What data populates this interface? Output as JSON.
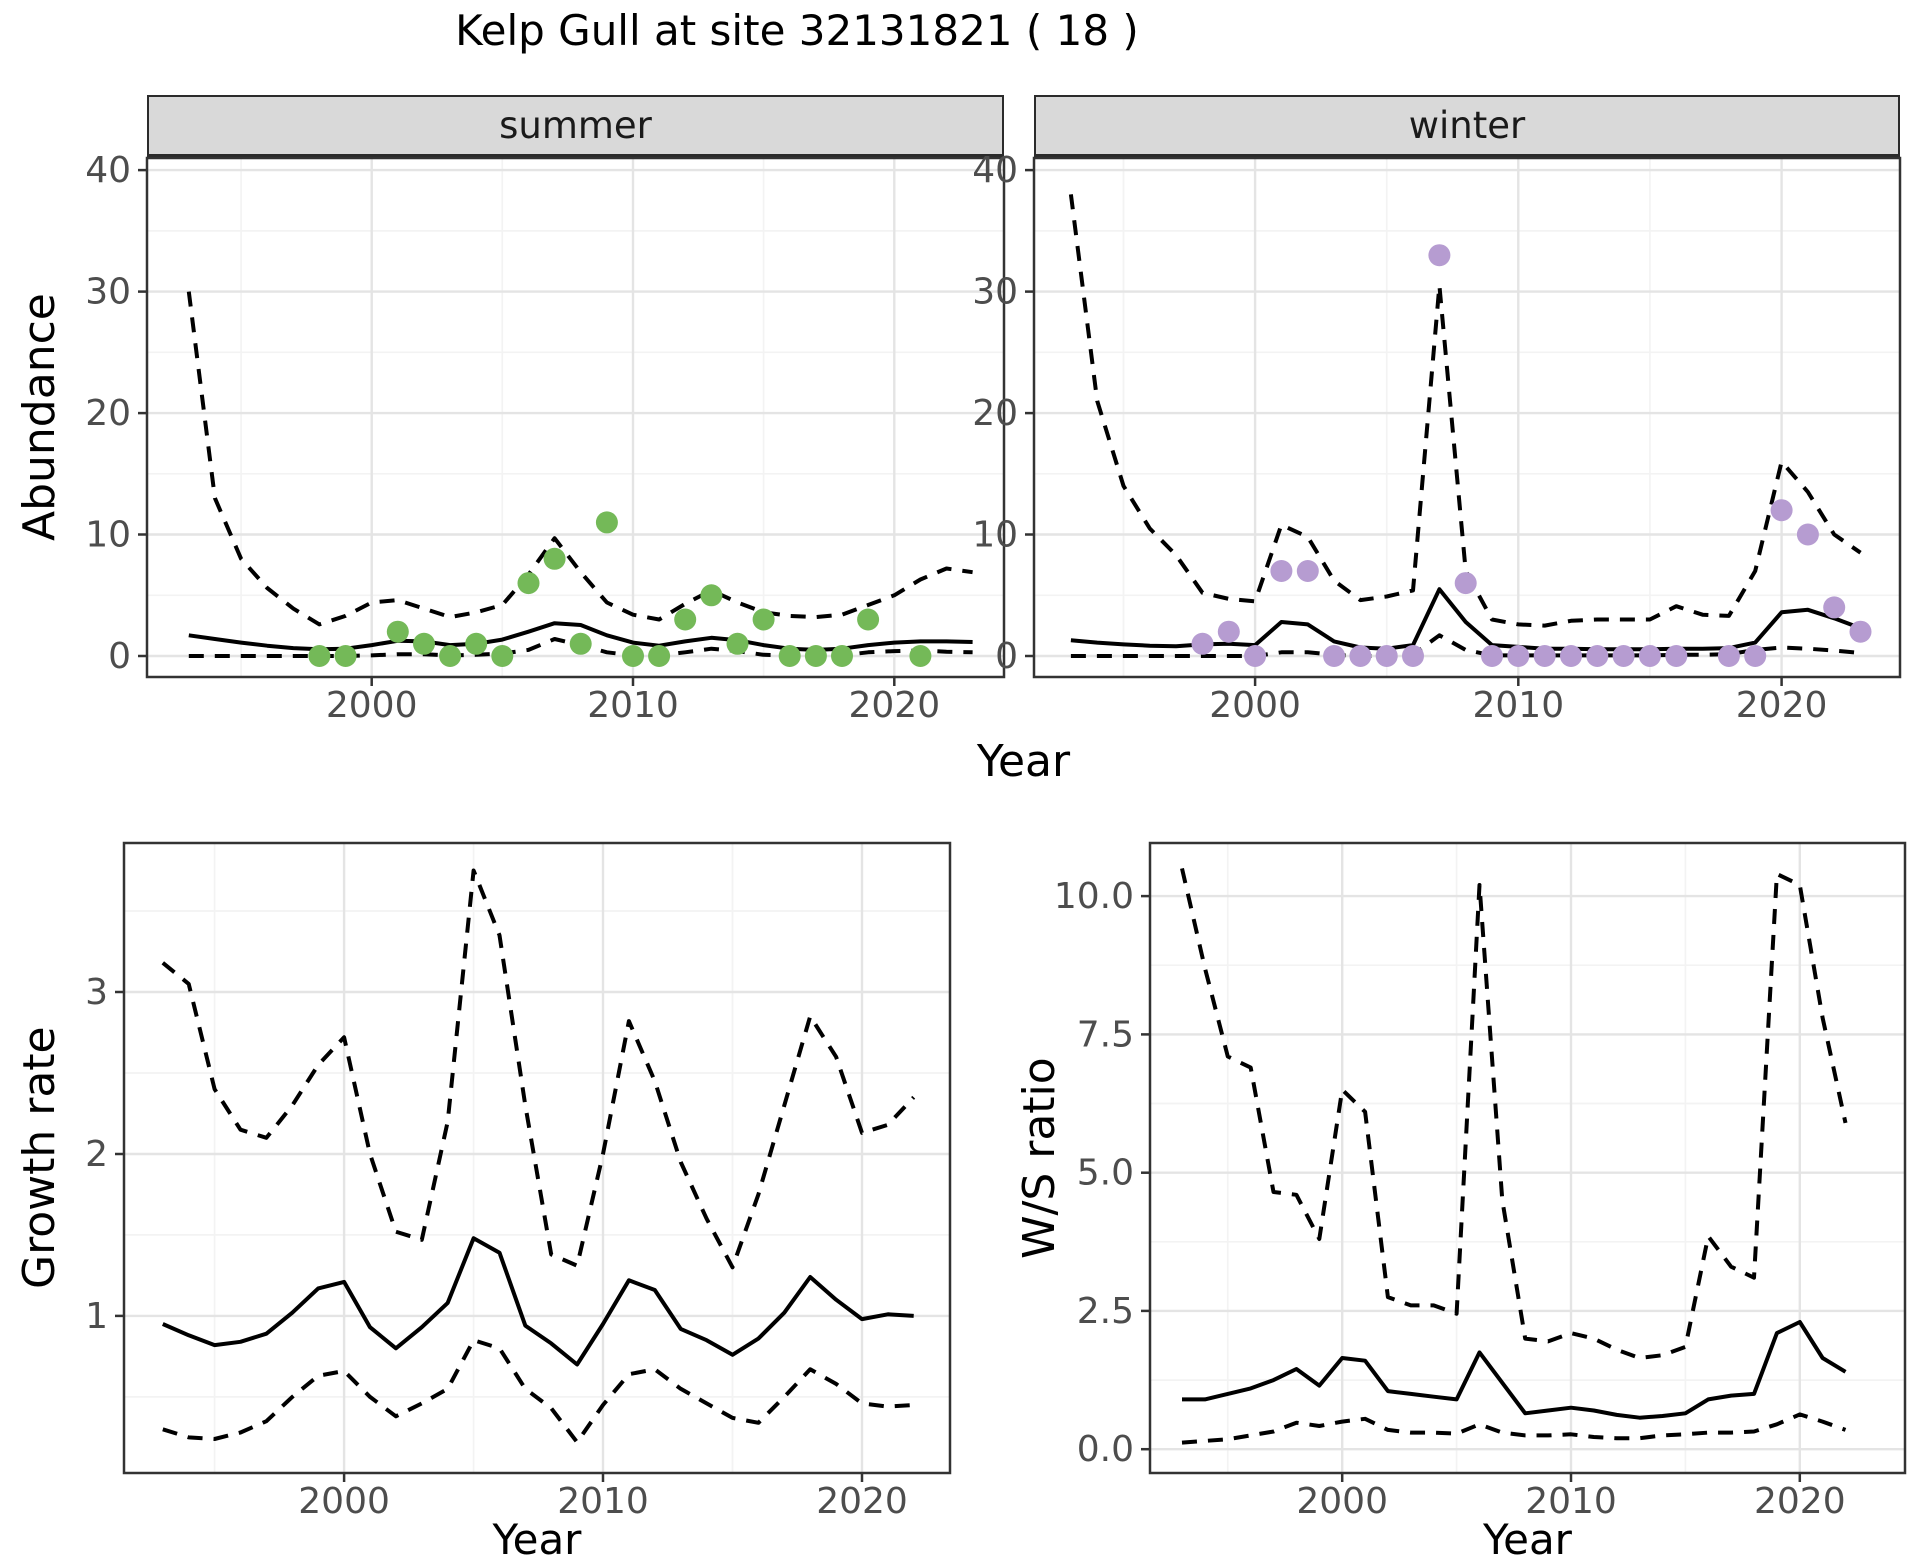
{
  "title": "Kelp Gull at site 32131821 ( 18 )",
  "colors": {
    "summer_points": "#74b958",
    "winter_points": "#b69cd1",
    "fit_line": "#000000",
    "ci_line": "#000000",
    "strip_bg": "#d9d9d9",
    "grid_major": "#e4e4e4",
    "panel_border": "#333333",
    "tick_text": "#4d4d4d"
  },
  "chart_data": [
    {
      "type": "line",
      "facet": "summer",
      "xlabel": "Year",
      "ylabel": "Abundance",
      "xlim": [
        1991.4,
        2024.2
      ],
      "ylim": [
        -1.73,
        41.0
      ],
      "x_ticks": [
        2000,
        2010,
        2020
      ],
      "x_tick_labels": [
        "2000",
        "2010",
        "2020"
      ],
      "x_minor": [
        1995,
        2005,
        2015
      ],
      "y_ticks": [
        0,
        10,
        20,
        30,
        40
      ],
      "y_tick_labels": [
        "0",
        "10",
        "20",
        "30",
        "40"
      ],
      "y_minor": [
        5,
        15,
        25,
        35
      ],
      "grid": true,
      "legend": "none",
      "series": [
        {
          "name": "median fit",
          "style": "solid",
          "x": [
            1993,
            1994,
            1995,
            1996,
            1997,
            1998,
            1999,
            2000,
            2001,
            2002,
            2003,
            2004,
            2005,
            2006,
            2007,
            2008,
            2009,
            2010,
            2011,
            2012,
            2013,
            2014,
            2015,
            2016,
            2017,
            2018,
            2019,
            2020,
            2021,
            2022,
            2023
          ],
          "y": [
            1.7,
            1.4,
            1.1,
            0.85,
            0.65,
            0.55,
            0.6,
            0.9,
            1.25,
            1.2,
            0.9,
            1.0,
            1.35,
            2.0,
            2.7,
            2.55,
            1.7,
            1.1,
            0.85,
            1.2,
            1.5,
            1.3,
            0.9,
            0.6,
            0.5,
            0.6,
            0.9,
            1.1,
            1.2,
            1.2,
            1.15
          ]
        },
        {
          "name": "upper 95% CI",
          "style": "dashed",
          "x": [
            1993,
            1994,
            1995,
            1996,
            1997,
            1998,
            1999,
            2000,
            2001,
            2002,
            2003,
            2004,
            2005,
            2006,
            2007,
            2008,
            2009,
            2010,
            2011,
            2012,
            2013,
            2014,
            2015,
            2016,
            2017,
            2018,
            2019,
            2020,
            2021,
            2022,
            2023
          ],
          "y": [
            30,
            13,
            8,
            5.6,
            3.9,
            2.6,
            3.3,
            4.4,
            4.6,
            3.9,
            3.2,
            3.6,
            4.2,
            6.7,
            9.7,
            6.9,
            4.4,
            3.4,
            3.0,
            4.3,
            5.4,
            4.4,
            3.6,
            3.3,
            3.2,
            3.4,
            4.2,
            5.0,
            6.3,
            7.2,
            6.9
          ]
        },
        {
          "name": "lower 95% CI",
          "style": "dashed",
          "x": [
            1993,
            1994,
            1995,
            1996,
            1997,
            1998,
            1999,
            2000,
            2001,
            2002,
            2003,
            2004,
            2005,
            2006,
            2007,
            2008,
            2009,
            2010,
            2011,
            2012,
            2013,
            2014,
            2015,
            2016,
            2017,
            2018,
            2019,
            2020,
            2021,
            2022,
            2023
          ],
          "y": [
            0,
            0,
            0,
            0,
            0,
            0,
            0,
            0.05,
            0.15,
            0.15,
            0.05,
            0.1,
            0.2,
            0.5,
            1.4,
            0.9,
            0.3,
            0.05,
            0.05,
            0.3,
            0.6,
            0.4,
            0.1,
            0.05,
            0.05,
            0.05,
            0.3,
            0.4,
            0.45,
            0.35,
            0.3
          ]
        }
      ],
      "points": {
        "name": "observed abundance (summer)",
        "color_key": "summer_points",
        "x": [
          1998,
          1999,
          2001,
          2002,
          2003,
          2004,
          2005,
          2006,
          2007,
          2008,
          2009,
          2010,
          2011,
          2012,
          2013,
          2014,
          2015,
          2016,
          2017,
          2018,
          2019,
          2021
        ],
        "y": [
          0,
          0,
          2,
          1,
          0,
          1,
          0,
          6,
          8,
          1,
          11,
          0,
          0,
          3,
          5,
          1,
          3,
          0,
          0,
          0,
          3,
          0
        ]
      }
    },
    {
      "type": "line",
      "facet": "winter",
      "xlabel": "Year",
      "ylabel": "Abundance",
      "xlim": [
        1991.6,
        2024.5
      ],
      "ylim": [
        -1.73,
        41.0
      ],
      "x_ticks": [
        2000,
        2010,
        2020
      ],
      "x_tick_labels": [
        "2000",
        "2010",
        "2020"
      ],
      "x_minor": [
        1995,
        2005,
        2015
      ],
      "y_ticks": [
        0,
        10,
        20,
        30,
        40
      ],
      "y_tick_labels": [
        "0",
        "10",
        "20",
        "30",
        "40"
      ],
      "y_minor": [
        5,
        15,
        25,
        35
      ],
      "grid": true,
      "legend": "none",
      "series": [
        {
          "name": "median fit",
          "style": "solid",
          "x": [
            1993,
            1994,
            1995,
            1996,
            1997,
            1998,
            1999,
            2000,
            2001,
            2002,
            2003,
            2004,
            2005,
            2006,
            2007,
            2008,
            2009,
            2010,
            2011,
            2012,
            2013,
            2014,
            2015,
            2016,
            2017,
            2018,
            2019,
            2020,
            2021,
            2022,
            2023
          ],
          "y": [
            1.3,
            1.1,
            0.95,
            0.85,
            0.8,
            0.95,
            1.0,
            0.9,
            2.8,
            2.6,
            1.2,
            0.7,
            0.6,
            0.9,
            5.5,
            2.8,
            0.9,
            0.75,
            0.6,
            0.6,
            0.55,
            0.55,
            0.55,
            0.6,
            0.6,
            0.65,
            1.1,
            3.6,
            3.8,
            3.1,
            2.3
          ]
        },
        {
          "name": "upper 95% CI",
          "style": "dashed",
          "x": [
            1993,
            1994,
            1995,
            1996,
            1997,
            1998,
            1999,
            2000,
            2001,
            2002,
            2003,
            2004,
            2005,
            2006,
            2007,
            2008,
            2009,
            2010,
            2011,
            2012,
            2013,
            2014,
            2015,
            2016,
            2017,
            2018,
            2019,
            2020,
            2021,
            2022,
            2023
          ],
          "y": [
            38,
            21,
            14,
            10.5,
            8.3,
            5.2,
            4.7,
            4.5,
            10.8,
            9.8,
            6.2,
            4.6,
            4.9,
            5.4,
            30.5,
            7.0,
            3.0,
            2.6,
            2.5,
            2.9,
            3.0,
            3.0,
            3.0,
            4.1,
            3.4,
            3.3,
            7.0,
            16,
            13.5,
            10,
            8.5
          ]
        },
        {
          "name": "lower 95% CI",
          "style": "dashed",
          "x": [
            1993,
            1994,
            1995,
            1996,
            1997,
            1998,
            1999,
            2000,
            2001,
            2002,
            2003,
            2004,
            2005,
            2006,
            2007,
            2008,
            2009,
            2010,
            2011,
            2012,
            2013,
            2014,
            2015,
            2016,
            2017,
            2018,
            2019,
            2020,
            2021,
            2022,
            2023
          ],
          "y": [
            0,
            0,
            0,
            0,
            0,
            0,
            0,
            0,
            0.3,
            0.3,
            0.1,
            0,
            0,
            0.1,
            1.7,
            0.5,
            0.05,
            0.05,
            0.05,
            0.05,
            0.05,
            0.05,
            0.05,
            0.1,
            0.1,
            0.15,
            0.5,
            0.7,
            0.6,
            0.45,
            0.25
          ]
        }
      ],
      "points": {
        "name": "observed abundance (winter)",
        "color_key": "winter_points",
        "x": [
          1998,
          1999,
          2000,
          2001,
          2002,
          2003,
          2004,
          2005,
          2006,
          2007,
          2008,
          2009,
          2010,
          2011,
          2012,
          2013,
          2014,
          2015,
          2016,
          2018,
          2019,
          2020,
          2021,
          2022,
          2023
        ],
        "y": [
          1,
          2,
          0,
          7,
          7,
          0,
          0,
          0,
          0,
          33,
          6,
          0,
          0,
          0,
          0,
          0,
          0,
          0,
          0,
          0,
          0,
          12,
          10,
          4,
          2
        ]
      }
    },
    {
      "type": "line",
      "facet": "",
      "xlabel": "Year",
      "ylabel": "Growth rate",
      "xlim": [
        1991.5,
        2023.4
      ],
      "ylim": [
        0.03,
        3.92
      ],
      "x_ticks": [
        2000,
        2010,
        2020
      ],
      "x_tick_labels": [
        "2000",
        "2010",
        "2020"
      ],
      "x_minor": [
        1995,
        2005,
        2015
      ],
      "y_ticks": [
        1,
        2,
        3
      ],
      "y_tick_labels": [
        "1",
        "2",
        "3"
      ],
      "y_minor": [
        0.5,
        1.5,
        2.5,
        3.5
      ],
      "grid": true,
      "legend": "none",
      "series": [
        {
          "name": "median growth rate",
          "style": "solid",
          "x": [
            1993,
            1994,
            1995,
            1996,
            1997,
            1998,
            1999,
            2000,
            2001,
            2002,
            2003,
            2004,
            2005,
            2006,
            2007,
            2008,
            2009,
            2010,
            2011,
            2012,
            2013,
            2014,
            2015,
            2016,
            2017,
            2018,
            2019,
            2020,
            2021,
            2022
          ],
          "y": [
            0.95,
            0.88,
            0.82,
            0.84,
            0.89,
            1.02,
            1.17,
            1.21,
            0.93,
            0.8,
            0.93,
            1.08,
            1.48,
            1.39,
            0.94,
            0.83,
            0.7,
            0.95,
            1.22,
            1.16,
            0.92,
            0.85,
            0.76,
            0.86,
            1.02,
            1.24,
            1.1,
            0.98,
            1.01,
            1.0
          ]
        },
        {
          "name": "upper 95% CI",
          "style": "dashed",
          "x": [
            1993,
            1994,
            1995,
            1996,
            1997,
            1998,
            1999,
            2000,
            2001,
            2002,
            2003,
            2004,
            2005,
            2006,
            2007,
            2008,
            2009,
            2010,
            2011,
            2012,
            2013,
            2014,
            2015,
            2016,
            2017,
            2018,
            2019,
            2020,
            2021,
            2022
          ],
          "y": [
            3.18,
            3.05,
            2.4,
            2.15,
            2.1,
            2.3,
            2.55,
            2.72,
            2.0,
            1.52,
            1.47,
            2.2,
            3.75,
            3.35,
            2.3,
            1.38,
            1.31,
            2.0,
            2.82,
            2.45,
            1.95,
            1.6,
            1.3,
            1.75,
            2.3,
            2.85,
            2.6,
            2.13,
            2.18,
            2.35
          ]
        },
        {
          "name": "lower 95% CI",
          "style": "dashed",
          "x": [
            1993,
            1994,
            1995,
            1996,
            1997,
            1998,
            1999,
            2000,
            2001,
            2002,
            2003,
            2004,
            2005,
            2006,
            2007,
            2008,
            2009,
            2010,
            2011,
            2012,
            2013,
            2014,
            2015,
            2016,
            2017,
            2018,
            2019,
            2020,
            2021,
            2022
          ],
          "y": [
            0.3,
            0.25,
            0.24,
            0.28,
            0.35,
            0.5,
            0.63,
            0.66,
            0.5,
            0.38,
            0.46,
            0.55,
            0.85,
            0.8,
            0.55,
            0.43,
            0.22,
            0.45,
            0.64,
            0.67,
            0.55,
            0.46,
            0.37,
            0.34,
            0.5,
            0.67,
            0.58,
            0.46,
            0.44,
            0.45
          ]
        }
      ]
    },
    {
      "type": "line",
      "facet": "",
      "xlabel": "Year",
      "ylabel": "W/S ratio",
      "xlim": [
        1991.6,
        2024.6
      ],
      "ylim": [
        -0.43,
        10.96
      ],
      "x_ticks": [
        2000,
        2010,
        2020
      ],
      "x_tick_labels": [
        "2000",
        "2010",
        "2020"
      ],
      "x_minor": [
        1995,
        2005,
        2015
      ],
      "y_ticks": [
        0,
        2.5,
        5,
        7.5,
        10
      ],
      "y_tick_labels": [
        "0.0",
        "2.5",
        "5.0",
        "7.5",
        "10.0"
      ],
      "y_minor": [
        1.25,
        3.75,
        6.25,
        8.75
      ],
      "grid": true,
      "legend": "none",
      "series": [
        {
          "name": "median W/S ratio",
          "style": "solid",
          "x": [
            1993,
            1994,
            1995,
            1996,
            1997,
            1998,
            1999,
            2000,
            2001,
            2002,
            2003,
            2004,
            2005,
            2006,
            2007,
            2008,
            2009,
            2010,
            2011,
            2012,
            2013,
            2014,
            2015,
            2016,
            2017,
            2018,
            2019,
            2020,
            2021,
            2022
          ],
          "y": [
            0.9,
            0.9,
            1.0,
            1.1,
            1.25,
            1.45,
            1.15,
            1.65,
            1.6,
            1.05,
            1.0,
            0.95,
            0.9,
            1.75,
            1.2,
            0.65,
            0.7,
            0.75,
            0.7,
            0.62,
            0.57,
            0.6,
            0.65,
            0.9,
            0.97,
            1.0,
            2.1,
            2.3,
            1.65,
            1.4
          ]
        },
        {
          "name": "upper 95% CI",
          "style": "dashed",
          "x": [
            1993,
            1994,
            1995,
            1996,
            1997,
            1998,
            1999,
            2000,
            2001,
            2002,
            2003,
            2004,
            2005,
            2006,
            2007,
            2008,
            2009,
            2010,
            2011,
            2012,
            2013,
            2014,
            2015,
            2016,
            2017,
            2018,
            2019,
            2020,
            2021,
            2022
          ],
          "y": [
            10.5,
            8.7,
            7.1,
            6.9,
            4.65,
            4.6,
            3.8,
            6.5,
            6.1,
            2.75,
            2.6,
            2.6,
            2.45,
            10.2,
            4.5,
            2.0,
            1.95,
            2.1,
            2.0,
            1.8,
            1.65,
            1.7,
            1.85,
            3.85,
            3.3,
            3.1,
            10.4,
            10.2,
            7.8,
            5.9
          ]
        },
        {
          "name": "lower 95% CI",
          "style": "dashed",
          "x": [
            1993,
            1994,
            1995,
            1996,
            1997,
            1998,
            1999,
            2000,
            2001,
            2002,
            2003,
            2004,
            2005,
            2006,
            2007,
            2008,
            2009,
            2010,
            2011,
            2012,
            2013,
            2014,
            2015,
            2016,
            2017,
            2018,
            2019,
            2020,
            2021,
            2022
          ],
          "y": [
            0.12,
            0.15,
            0.18,
            0.25,
            0.32,
            0.48,
            0.42,
            0.5,
            0.55,
            0.35,
            0.3,
            0.3,
            0.28,
            0.45,
            0.3,
            0.25,
            0.25,
            0.27,
            0.22,
            0.2,
            0.2,
            0.25,
            0.27,
            0.3,
            0.3,
            0.32,
            0.45,
            0.63,
            0.5,
            0.35
          ]
        }
      ]
    }
  ]
}
